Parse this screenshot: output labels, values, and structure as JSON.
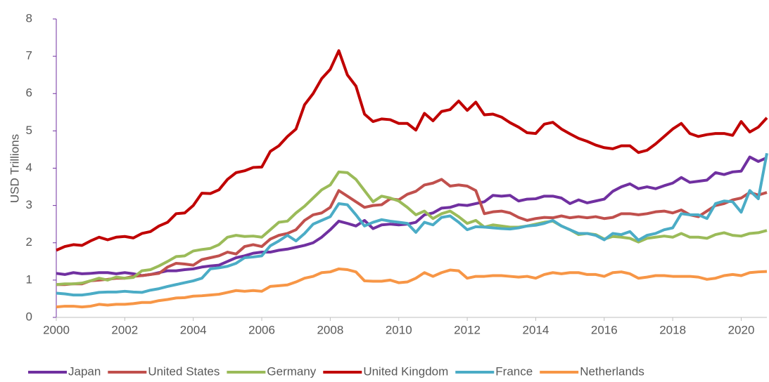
{
  "chart_data": {
    "type": "line",
    "y_label": "USD Trillions",
    "x": [
      2000,
      2000.25,
      2000.5,
      2000.75,
      2001,
      2001.25,
      2001.5,
      2001.75,
      2002,
      2002.25,
      2002.5,
      2002.75,
      2003,
      2003.25,
      2003.5,
      2003.75,
      2004,
      2004.25,
      2004.5,
      2004.75,
      2005,
      2005.25,
      2005.5,
      2005.75,
      2006,
      2006.25,
      2006.5,
      2006.75,
      2007,
      2007.25,
      2007.5,
      2007.75,
      2008,
      2008.25,
      2008.5,
      2008.75,
      2009,
      2009.25,
      2009.5,
      2009.75,
      2010,
      2010.25,
      2010.5,
      2010.75,
      2011,
      2011.25,
      2011.5,
      2011.75,
      2012,
      2012.25,
      2012.5,
      2012.75,
      2013,
      2013.25,
      2013.5,
      2013.75,
      2014,
      2014.25,
      2014.5,
      2014.75,
      2015,
      2015.25,
      2015.5,
      2015.75,
      2016,
      2016.25,
      2016.5,
      2016.75,
      2017,
      2017.25,
      2017.5,
      2017.75,
      2018,
      2018.25,
      2018.5,
      2018.75,
      2019,
      2019.25,
      2019.5,
      2019.75,
      2020,
      2020.25,
      2020.5,
      2020.75
    ],
    "series": [
      {
        "name": "Japan",
        "color": "#7030a0",
        "values": [
          1.18,
          1.15,
          1.2,
          1.17,
          1.18,
          1.2,
          1.2,
          1.17,
          1.2,
          1.17,
          1.12,
          1.15,
          1.2,
          1.25,
          1.25,
          1.28,
          1.3,
          1.35,
          1.38,
          1.4,
          1.5,
          1.6,
          1.65,
          1.72,
          1.75,
          1.75,
          1.8,
          1.83,
          1.88,
          1.93,
          2.0,
          2.15,
          2.35,
          2.58,
          2.52,
          2.45,
          2.6,
          2.38,
          2.48,
          2.5,
          2.48,
          2.5,
          2.55,
          2.75,
          2.8,
          2.93,
          2.95,
          3.02,
          3.0,
          3.05,
          3.1,
          3.27,
          3.25,
          3.27,
          3.12,
          3.17,
          3.18,
          3.25,
          3.25,
          3.2,
          3.05,
          3.15,
          3.07,
          3.12,
          3.17,
          3.38,
          3.5,
          3.58,
          3.45,
          3.5,
          3.45,
          3.53,
          3.6,
          3.75,
          3.62,
          3.65,
          3.68,
          3.88,
          3.83,
          3.9,
          3.92,
          4.3,
          4.18,
          4.28
        ]
      },
      {
        "name": "United States",
        "color": "#c0504d",
        "values": [
          0.88,
          0.88,
          0.9,
          0.9,
          0.98,
          1.0,
          1.02,
          1.05,
          1.05,
          1.1,
          1.12,
          1.15,
          1.18,
          1.35,
          1.45,
          1.43,
          1.4,
          1.55,
          1.6,
          1.65,
          1.75,
          1.7,
          1.9,
          1.95,
          1.9,
          2.1,
          2.2,
          2.25,
          2.35,
          2.6,
          2.75,
          2.8,
          2.95,
          3.4,
          3.25,
          3.1,
          2.95,
          3.0,
          3.02,
          3.18,
          3.15,
          3.3,
          3.38,
          3.55,
          3.6,
          3.7,
          3.52,
          3.55,
          3.52,
          3.4,
          2.78,
          2.83,
          2.85,
          2.8,
          2.68,
          2.6,
          2.65,
          2.68,
          2.67,
          2.72,
          2.67,
          2.7,
          2.67,
          2.7,
          2.65,
          2.68,
          2.78,
          2.78,
          2.75,
          2.78,
          2.83,
          2.85,
          2.8,
          2.88,
          2.75,
          2.7,
          2.85,
          3.0,
          3.05,
          3.15,
          3.2,
          3.35,
          3.28,
          3.35
        ]
      },
      {
        "name": "Germany",
        "color": "#9bbb59",
        "values": [
          0.88,
          0.9,
          0.9,
          0.92,
          0.98,
          1.05,
          1.0,
          1.08,
          1.05,
          1.07,
          1.25,
          1.28,
          1.38,
          1.5,
          1.63,
          1.65,
          1.78,
          1.82,
          1.85,
          1.95,
          2.15,
          2.2,
          2.17,
          2.18,
          2.15,
          2.35,
          2.55,
          2.58,
          2.8,
          2.98,
          3.2,
          3.42,
          3.55,
          3.9,
          3.88,
          3.7,
          3.4,
          3.1,
          3.25,
          3.2,
          3.12,
          2.95,
          2.75,
          2.85,
          2.65,
          2.78,
          2.85,
          2.7,
          2.52,
          2.6,
          2.42,
          2.48,
          2.45,
          2.42,
          2.42,
          2.45,
          2.5,
          2.55,
          2.58,
          2.45,
          2.35,
          2.22,
          2.25,
          2.22,
          2.1,
          2.17,
          2.15,
          2.12,
          2.02,
          2.12,
          2.15,
          2.18,
          2.15,
          2.25,
          2.15,
          2.15,
          2.12,
          2.22,
          2.27,
          2.2,
          2.18,
          2.25,
          2.27,
          2.33
        ]
      },
      {
        "name": "United Kingdom",
        "color": "#c00000",
        "values": [
          1.8,
          1.9,
          1.95,
          1.93,
          2.05,
          2.15,
          2.08,
          2.15,
          2.17,
          2.13,
          2.25,
          2.3,
          2.45,
          2.55,
          2.78,
          2.8,
          3.0,
          3.33,
          3.32,
          3.42,
          3.7,
          3.88,
          3.93,
          4.02,
          4.03,
          4.45,
          4.6,
          4.85,
          5.05,
          5.7,
          6.0,
          6.4,
          6.65,
          7.15,
          6.5,
          6.2,
          5.45,
          5.25,
          5.32,
          5.3,
          5.2,
          5.2,
          5.02,
          5.47,
          5.27,
          5.52,
          5.57,
          5.8,
          5.55,
          5.77,
          5.43,
          5.45,
          5.37,
          5.22,
          5.1,
          4.95,
          4.93,
          5.18,
          5.23,
          5.05,
          4.92,
          4.8,
          4.72,
          4.62,
          4.55,
          4.52,
          4.6,
          4.6,
          4.42,
          4.48,
          4.65,
          4.85,
          5.05,
          5.2,
          4.93,
          4.85,
          4.9,
          4.93,
          4.93,
          4.88,
          5.25,
          4.97,
          5.1,
          5.35
        ]
      },
      {
        "name": "France",
        "color": "#4bacc6",
        "values": [
          0.65,
          0.63,
          0.6,
          0.6,
          0.63,
          0.67,
          0.68,
          0.68,
          0.7,
          0.68,
          0.67,
          0.73,
          0.77,
          0.83,
          0.88,
          0.93,
          0.98,
          1.05,
          1.3,
          1.33,
          1.37,
          1.45,
          1.6,
          1.62,
          1.65,
          1.92,
          2.05,
          2.2,
          2.05,
          2.25,
          2.5,
          2.6,
          2.7,
          3.05,
          3.02,
          2.75,
          2.45,
          2.55,
          2.62,
          2.58,
          2.55,
          2.52,
          2.28,
          2.55,
          2.48,
          2.68,
          2.72,
          2.55,
          2.35,
          2.43,
          2.42,
          2.4,
          2.38,
          2.37,
          2.4,
          2.45,
          2.47,
          2.52,
          2.6,
          2.45,
          2.35,
          2.25,
          2.25,
          2.2,
          2.08,
          2.25,
          2.22,
          2.3,
          2.07,
          2.2,
          2.25,
          2.35,
          2.4,
          2.78,
          2.75,
          2.75,
          2.65,
          3.05,
          3.12,
          3.1,
          2.82,
          3.4,
          3.18,
          4.4
        ]
      },
      {
        "name": "Netherlands",
        "color": "#f79646",
        "values": [
          0.28,
          0.3,
          0.3,
          0.28,
          0.3,
          0.35,
          0.33,
          0.35,
          0.35,
          0.37,
          0.4,
          0.4,
          0.45,
          0.48,
          0.52,
          0.53,
          0.57,
          0.58,
          0.6,
          0.62,
          0.67,
          0.72,
          0.7,
          0.72,
          0.7,
          0.83,
          0.85,
          0.87,
          0.95,
          1.05,
          1.1,
          1.2,
          1.22,
          1.3,
          1.28,
          1.22,
          0.98,
          0.97,
          0.97,
          1.0,
          0.93,
          0.95,
          1.05,
          1.2,
          1.1,
          1.2,
          1.27,
          1.25,
          1.05,
          1.1,
          1.1,
          1.12,
          1.12,
          1.1,
          1.08,
          1.1,
          1.05,
          1.15,
          1.2,
          1.17,
          1.2,
          1.2,
          1.15,
          1.15,
          1.1,
          1.2,
          1.22,
          1.17,
          1.05,
          1.08,
          1.12,
          1.12,
          1.1,
          1.1,
          1.1,
          1.08,
          1.02,
          1.05,
          1.12,
          1.15,
          1.12,
          1.2,
          1.22,
          1.23
        ]
      }
    ],
    "xlim": [
      2000,
      2020.75
    ],
    "xticks": [
      2000,
      2002,
      2004,
      2006,
      2008,
      2010,
      2012,
      2014,
      2016,
      2018,
      2020
    ],
    "ylim": [
      0,
      8
    ],
    "yticks": [
      0,
      1,
      2,
      3,
      4,
      5,
      6,
      7,
      8
    ],
    "grid": false,
    "legend": "bottom",
    "y_axis_color": "#7030a0"
  }
}
